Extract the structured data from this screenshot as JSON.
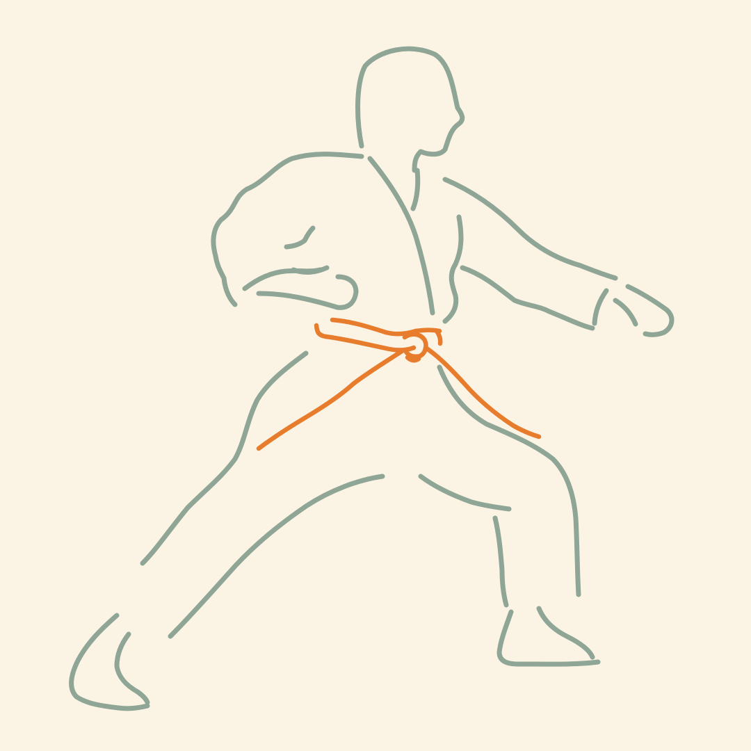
{
  "illustration": {
    "subject": "karate-figure",
    "colors": {
      "background": "#FBF3E4",
      "outline": "#8FA596",
      "belt": "#E67C2C"
    }
  }
}
